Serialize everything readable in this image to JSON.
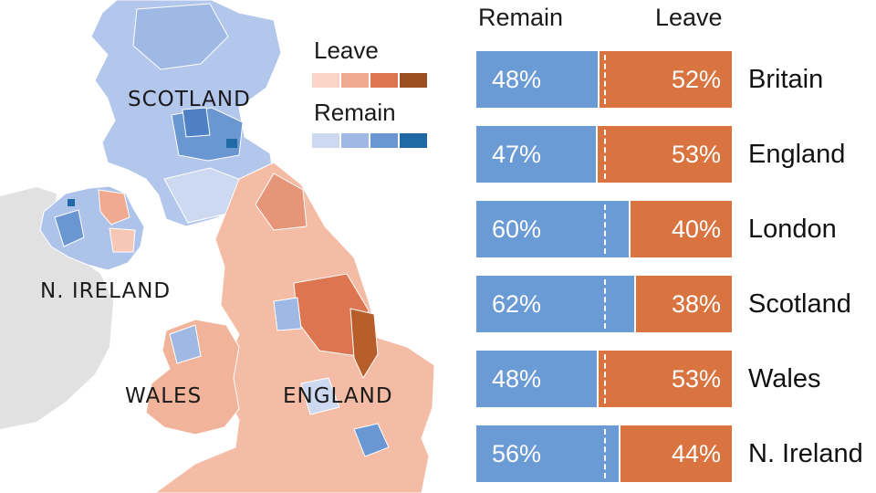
{
  "map": {
    "labels": {
      "scotland": "SCOTLAND",
      "n_ireland": "N. IRELAND",
      "wales": "WALES",
      "england": "ENGLAND"
    },
    "legend": {
      "leave_title": "Leave",
      "remain_title": "Remain",
      "leave_colors": [
        "#f9d5c7",
        "#f1a98f",
        "#dc7550",
        "#9c4f22"
      ],
      "remain_colors": [
        "#cdd9f0",
        "#9fb9e4",
        "#6a96d2",
        "#1f6aa6"
      ]
    }
  },
  "chart_data": {
    "type": "bar",
    "stacked": true,
    "column_headers": {
      "remain": "Remain",
      "leave": "Leave"
    },
    "categories": [
      "Britain",
      "England",
      "London",
      "Scotland",
      "Wales",
      "N. Ireland"
    ],
    "series": [
      {
        "name": "Remain",
        "color": "#6b9bd4",
        "values": [
          48,
          47,
          60,
          62,
          48,
          56
        ],
        "labels": [
          "48%",
          "47%",
          "60%",
          "62%",
          "48%",
          "56%"
        ]
      },
      {
        "name": "Leave",
        "color": "#d9733f",
        "values": [
          52,
          53,
          40,
          38,
          53,
          44
        ],
        "labels": [
          "52%",
          "53%",
          "40%",
          "38%",
          "53%",
          "44%"
        ]
      }
    ],
    "midline": 50,
    "xlim": [
      0,
      100
    ]
  }
}
